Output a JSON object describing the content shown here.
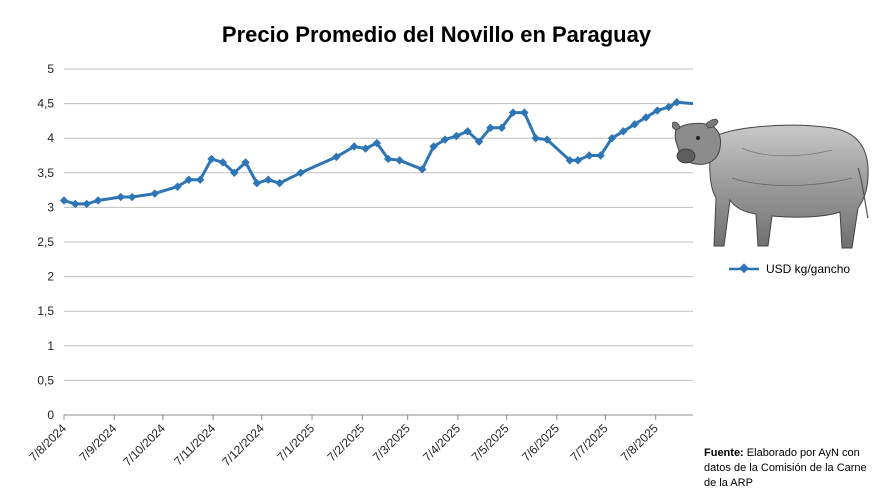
{
  "chart_data": {
    "type": "line",
    "title": "Precio Promedio del Novillo en Paraguay",
    "xlabel": "",
    "ylabel": "",
    "ylim": [
      0,
      5
    ],
    "y_ticks": [
      "0",
      "0,5",
      "1",
      "1,5",
      "2",
      "2,5",
      "3",
      "3,5",
      "4",
      "4,5",
      "5"
    ],
    "x_ticks": [
      "7/8/2024",
      "7/9/2024",
      "7/10/2024",
      "7/11/2024",
      "7/12/2024",
      "7/1/2025",
      "7/2/2025",
      "7/3/2025",
      "7/4/2025",
      "7/5/2025",
      "7/6/2025",
      "7/7/2025",
      "7/8/2025"
    ],
    "x_range": [
      "2024-08-07",
      "2025-08-30"
    ],
    "grid": true,
    "legend_position": "right",
    "series": [
      {
        "name": "USD kg/gancho",
        "color": "#2e75b6",
        "marker": "diamond",
        "points": [
          [
            "2024-08-07",
            3.1
          ],
          [
            "2024-08-14",
            3.05
          ],
          [
            "2024-08-21",
            3.05
          ],
          [
            "2024-08-28",
            3.1
          ],
          [
            "2024-09-11",
            3.15
          ],
          [
            "2024-09-18",
            3.15
          ],
          [
            "2024-10-02",
            3.2
          ],
          [
            "2024-10-16",
            3.3
          ],
          [
            "2024-10-23",
            3.4
          ],
          [
            "2024-10-30",
            3.4
          ],
          [
            "2024-11-06",
            3.7
          ],
          [
            "2024-11-13",
            3.65
          ],
          [
            "2024-11-20",
            3.5
          ],
          [
            "2024-11-27",
            3.65
          ],
          [
            "2024-12-04",
            3.35
          ],
          [
            "2024-12-11",
            3.4
          ],
          [
            "2024-12-18",
            3.35
          ],
          [
            "2024-12-31",
            3.5
          ],
          [
            "2025-01-22",
            3.73
          ],
          [
            "2025-02-02",
            3.88
          ],
          [
            "2025-02-09",
            3.85
          ],
          [
            "2025-02-16",
            3.93
          ],
          [
            "2025-02-23",
            3.7
          ],
          [
            "2025-03-02",
            3.68
          ],
          [
            "2025-03-16",
            3.55
          ],
          [
            "2025-03-23",
            3.88
          ],
          [
            "2025-03-30",
            3.98
          ],
          [
            "2025-04-06",
            4.03
          ],
          [
            "2025-04-13",
            4.1
          ],
          [
            "2025-04-20",
            3.95
          ],
          [
            "2025-04-27",
            4.15
          ],
          [
            "2025-05-04",
            4.15
          ],
          [
            "2025-05-11",
            4.37
          ],
          [
            "2025-05-18",
            4.37
          ],
          [
            "2025-05-25",
            4.0
          ],
          [
            "2025-06-01",
            3.98
          ],
          [
            "2025-06-15",
            3.68
          ],
          [
            "2025-06-20",
            3.68
          ],
          [
            "2025-06-27",
            3.75
          ],
          [
            "2025-07-04",
            3.75
          ],
          [
            "2025-07-11",
            4.0
          ],
          [
            "2025-07-18",
            4.1
          ],
          [
            "2025-07-25",
            4.2
          ],
          [
            "2025-08-01",
            4.3
          ],
          [
            "2025-08-08",
            4.4
          ],
          [
            "2025-08-15",
            4.45
          ],
          [
            "2025-08-20",
            4.52
          ],
          [
            "2025-08-30",
            4.5
          ]
        ]
      }
    ]
  },
  "source": {
    "label": "Fuente:",
    "text": " Elaborado por AyN con datos de la Comisión de la Carne de la ARP"
  },
  "image": {
    "icon": "bull-illustration"
  }
}
